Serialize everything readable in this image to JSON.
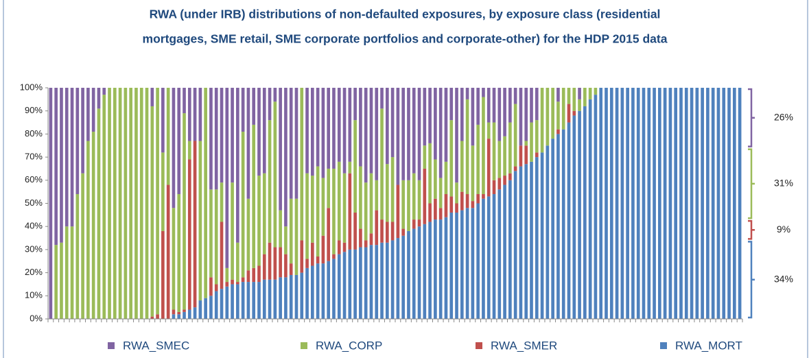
{
  "chart_data": {
    "type": "bar",
    "stacked": true,
    "title": [
      "RWA (under IRB) distributions  of non-defaulted  exposures, by exposure class (residential",
      "mortgages, SME retail,  SME corporate portfolios and corporate-other)  for the HDP 2015 data"
    ],
    "categories": [
      null,
      null,
      null,
      null,
      null,
      null,
      null,
      null,
      null,
      null,
      null,
      null,
      null,
      null,
      null,
      null,
      null,
      null,
      null,
      null,
      null,
      null,
      null,
      null,
      null,
      null,
      null,
      null,
      null,
      null,
      null,
      null,
      null,
      null,
      null,
      null,
      null,
      null,
      null,
      null,
      null,
      null,
      null,
      null,
      null,
      null,
      null,
      null,
      null,
      null,
      null,
      null,
      null,
      null,
      null,
      null,
      null,
      null,
      null,
      null,
      null,
      null,
      null,
      null,
      null,
      null,
      null,
      null,
      null,
      null,
      null,
      null,
      null,
      null,
      null,
      null,
      null,
      null,
      null,
      null,
      null,
      null,
      null,
      null,
      null,
      null,
      null,
      null,
      null,
      null,
      null,
      null,
      null,
      null,
      null,
      null,
      null,
      null,
      null,
      null,
      null,
      null,
      null,
      null,
      null,
      null,
      null,
      null,
      null,
      null,
      null,
      null,
      null,
      null,
      null,
      null,
      null,
      null,
      null,
      null,
      null,
      null,
      null,
      null,
      null,
      null,
      null,
      null,
      null,
      null
    ],
    "series": [
      {
        "name": "RWA_SMEC",
        "color": "#8064a2",
        "values": [
          100,
          68,
          67,
          60,
          60,
          46,
          37,
          23,
          19,
          9,
          3,
          0,
          0,
          0,
          0,
          0,
          0,
          0,
          0,
          8,
          0,
          28,
          0,
          52,
          46,
          11,
          23,
          23,
          23,
          0,
          44,
          44,
          41,
          78,
          41,
          67,
          19,
          48,
          16,
          38,
          37,
          14,
          6,
          53,
          60,
          48,
          48,
          0,
          37,
          38,
          34,
          39,
          35,
          35,
          32,
          37,
          32,
          14,
          34,
          41,
          37,
          40,
          9,
          33,
          30,
          42,
          40,
          40,
          37,
          40,
          25,
          24,
          31,
          39,
          32,
          14,
          41,
          23,
          5,
          25,
          16,
          4,
          15,
          15,
          23,
          21,
          15,
          7,
          25,
          23,
          15,
          14,
          0,
          0,
          0,
          6,
          0,
          0,
          0,
          5,
          0,
          0,
          0,
          0,
          0,
          0,
          0,
          0,
          0,
          0,
          0,
          0,
          0,
          0,
          0,
          0,
          0,
          0,
          0,
          0,
          0,
          0,
          0,
          0,
          0,
          0,
          0,
          0,
          0,
          0
        ]
      },
      {
        "name": "RWA_CORP",
        "color": "#9bbb59",
        "values": [
          0,
          32,
          33,
          40,
          40,
          54,
          63,
          77,
          81,
          91,
          97,
          100,
          100,
          100,
          100,
          100,
          100,
          100,
          100,
          91,
          98,
          34,
          42,
          44,
          51,
          85,
          8,
          0,
          69,
          91,
          38,
          41,
          17,
          6,
          42,
          17,
          63,
          31,
          62,
          39,
          35,
          53,
          63,
          16,
          12,
          28,
          33,
          66,
          37,
          29,
          39,
          25,
          17,
          37,
          34,
          30,
          5,
          40,
          27,
          25,
          26,
          13,
          48,
          25,
          28,
          0,
          21,
          22,
          20,
          17,
          10,
          26,
          17,
          13,
          14,
          33,
          9,
          22,
          41,
          24,
          30,
          42,
          7,
          25,
          16,
          17,
          22,
          27,
          0,
          2,
          17,
          14,
          28,
          25,
          22,
          12,
          18,
          7,
          10,
          5,
          8,
          5,
          3,
          0,
          0,
          0,
          0,
          0,
          0,
          0,
          0,
          0,
          0,
          0,
          0,
          0,
          0,
          0,
          0,
          0,
          0,
          0,
          0,
          0,
          0,
          0,
          0,
          0,
          0,
          0
        ]
      },
      {
        "name": "RWA_SMER",
        "color": "#c0504d",
        "values": [
          0,
          0,
          0,
          0,
          0,
          0,
          0,
          0,
          0,
          0,
          0,
          0,
          0,
          0,
          0,
          0,
          0,
          0,
          0,
          1,
          2,
          38,
          58,
          2,
          1,
          1,
          65,
          72,
          0,
          0,
          8,
          3,
          29,
          2,
          2,
          1,
          2,
          5,
          6,
          7,
          11,
          16,
          14,
          13,
          10,
          5,
          0,
          14,
          4,
          10,
          3,
          12,
          23,
          2,
          6,
          4,
          33,
          16,
          8,
          3,
          5,
          15,
          10,
          9,
          8,
          23,
          3,
          0,
          4,
          3,
          24,
          8,
          9,
          5,
          10,
          7,
          4,
          8,
          6,
          3,
          4,
          2,
          25,
          6,
          5,
          4,
          3,
          2,
          9,
          8,
          0,
          2,
          0,
          0,
          0,
          2,
          0,
          8,
          2,
          0,
          0,
          0,
          0,
          0,
          0,
          0,
          0,
          0,
          0,
          0,
          0,
          0,
          0,
          0,
          0,
          0,
          0,
          0,
          0,
          0,
          0,
          0,
          0,
          0,
          0,
          0,
          0,
          0,
          0,
          0
        ]
      },
      {
        "name": "RWA_MORT",
        "color": "#4f81bd",
        "values": [
          0,
          0,
          0,
          0,
          0,
          0,
          0,
          0,
          0,
          0,
          0,
          0,
          0,
          0,
          0,
          0,
          0,
          0,
          0,
          0,
          0,
          0,
          0,
          2,
          2,
          3,
          4,
          5,
          8,
          9,
          10,
          12,
          13,
          14,
          15,
          15,
          16,
          16,
          16,
          16,
          17,
          17,
          17,
          18,
          18,
          19,
          19,
          20,
          22,
          23,
          24,
          24,
          25,
          26,
          28,
          29,
          30,
          30,
          31,
          31,
          32,
          32,
          33,
          33,
          34,
          35,
          36,
          38,
          39,
          40,
          41,
          42,
          43,
          43,
          44,
          46,
          46,
          47,
          48,
          48,
          50,
          52,
          53,
          54,
          56,
          58,
          60,
          64,
          66,
          67,
          68,
          70,
          72,
          75,
          78,
          80,
          82,
          85,
          88,
          90,
          92,
          95,
          97,
          100,
          100,
          100,
          100,
          100,
          100,
          100,
          100,
          100,
          100,
          100,
          100,
          100,
          100,
          100,
          100,
          100,
          100,
          100,
          100,
          100,
          100,
          100,
          100,
          100,
          100,
          100
        ]
      }
    ],
    "shares": [
      {
        "value": 26,
        "label": "26%"
      },
      {
        "value": 31,
        "label": "31%"
      },
      {
        "value": 9,
        "label": "9%"
      },
      {
        "value": 34,
        "label": "34%"
      }
    ],
    "ylim": [
      0,
      100
    ],
    "yticks": [
      {
        "value": 0,
        "label": "0%"
      },
      {
        "value": 10,
        "label": "10%"
      },
      {
        "value": 20,
        "label": "20%"
      },
      {
        "value": 30,
        "label": "30%"
      },
      {
        "value": 40,
        "label": "40%"
      },
      {
        "value": 50,
        "label": "50%"
      },
      {
        "value": 60,
        "label": "60%"
      },
      {
        "value": 70,
        "label": "70%"
      },
      {
        "value": 80,
        "label": "80%"
      },
      {
        "value": 90,
        "label": "90%"
      },
      {
        "value": 100,
        "label": "100%"
      }
    ],
    "legend": "bottom"
  }
}
